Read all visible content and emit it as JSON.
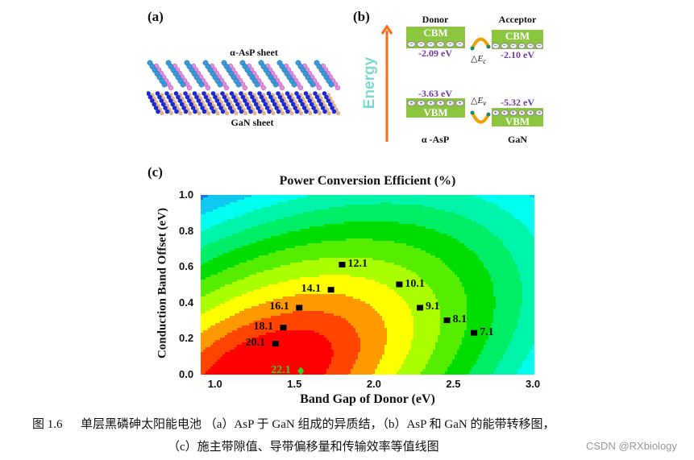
{
  "panel_a": {
    "label": "(a)",
    "top_sheet_label": "α-AsP sheet",
    "bottom_sheet_label": "GaN sheet"
  },
  "panel_b": {
    "label": "(b)",
    "axis_label": "Energy",
    "donor_label": "Donor",
    "acceptor_label": "Acceptor",
    "cbm": "CBM",
    "vbm": "VBM",
    "donor_cbm_value": "-2.09 eV",
    "acceptor_cbm_value": "-2.10 eV",
    "donor_vbm_value": "-3.63 eV",
    "acceptor_vbm_value": "-5.32 eV",
    "delta_ec": "△E",
    "delta_ec_sub": "c",
    "delta_ev": "△E",
    "delta_ev_sub": "v",
    "donor_material": "α -AsP",
    "acceptor_material": "GaN",
    "colors": {
      "band_box": "#8cc63f",
      "arrow": "#ff6a1a",
      "energy_text": "#7fd8d0",
      "values": "#6a3aa0"
    }
  },
  "chart_data": {
    "type": "heatmap",
    "panel_label": "(c)",
    "title": "Power Conversion Efficient (%)",
    "xlabel": "Band Gap of Donor (eV)",
    "ylabel": "Conduction Band Offset (eV)",
    "xlim": [
      0.9,
      3.0
    ],
    "ylim": [
      0.0,
      1.0
    ],
    "xticks": [
      "1.0",
      "1.5",
      "2.0",
      "2.5",
      "3.0"
    ],
    "xtick_values": [
      1.0,
      1.5,
      2.0,
      2.5,
      3.0
    ],
    "yticks": [
      "0.0",
      "0.2",
      "0.4",
      "0.6",
      "0.8",
      "1.0"
    ],
    "ytick_values": [
      0.0,
      0.2,
      0.4,
      0.6,
      0.8,
      1.0
    ],
    "grid": false,
    "colormap": [
      "#ff0000",
      "#ff4500",
      "#ff9900",
      "#ffff00",
      "#aaff00",
      "#55ee00",
      "#00dd00",
      "#00ee66",
      "#00f5aa",
      "#00ffee",
      "#10c8f0",
      "#1e74ee",
      "#0010e0"
    ],
    "points": [
      {
        "x": 1.79,
        "y": 0.61,
        "value": "12.1",
        "side": "right",
        "marker": "square"
      },
      {
        "x": 1.72,
        "y": 0.47,
        "value": "14.1",
        "side": "left",
        "marker": "square"
      },
      {
        "x": 1.52,
        "y": 0.37,
        "value": "16.1",
        "side": "left",
        "marker": "square"
      },
      {
        "x": 1.42,
        "y": 0.26,
        "value": "18.1",
        "side": "left",
        "marker": "square"
      },
      {
        "x": 1.37,
        "y": 0.17,
        "value": "20.1",
        "side": "left",
        "marker": "square"
      },
      {
        "x": 1.53,
        "y": 0.02,
        "value": "22.1",
        "side": "left",
        "marker": "diamond",
        "color": "#22dd22"
      },
      {
        "x": 2.15,
        "y": 0.5,
        "value": "10.1",
        "side": "right",
        "marker": "square"
      },
      {
        "x": 2.28,
        "y": 0.37,
        "value": "9.1",
        "side": "right",
        "marker": "square"
      },
      {
        "x": 2.45,
        "y": 0.3,
        "value": "8.1",
        "side": "right",
        "marker": "square"
      },
      {
        "x": 2.62,
        "y": 0.23,
        "value": "7.1",
        "side": "right",
        "marker": "square"
      }
    ]
  },
  "caption": {
    "line1": "图 1.6      单层黑磷砷太阳能电池 （a）AsP 于 GaN 组成的异质结，（b）AsP 和 GaN 的能带转移图，",
    "line2": "（c）施主带隙值、导带偏移量和传输效率等值线图"
  },
  "watermark": "CSDN @RXbiology"
}
